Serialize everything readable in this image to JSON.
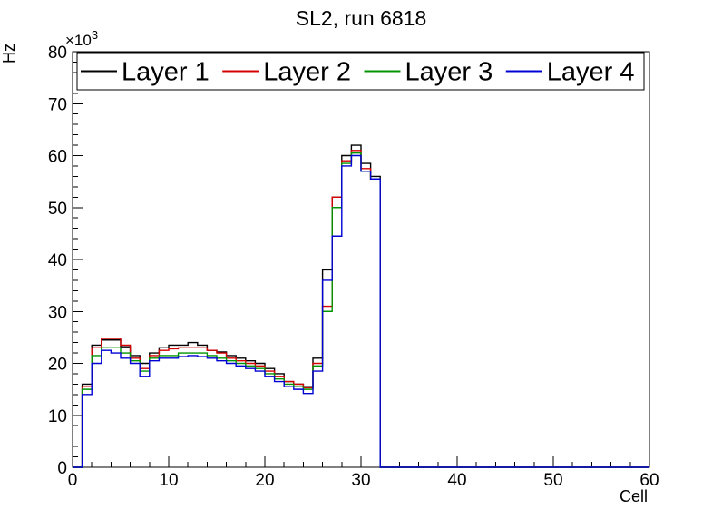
{
  "chart_data": {
    "type": "line",
    "style": "step-histogram",
    "title": "SL2, run 6818",
    "xlabel": "Cell",
    "ylabel": "Hz",
    "y_multiplier_base": "×10",
    "y_multiplier_exp": "3",
    "value_scale": 1000,
    "value_unit": "Hz",
    "xlim": [
      0,
      60
    ],
    "ylim": [
      0,
      80
    ],
    "xticks": [
      0,
      10,
      20,
      30,
      40,
      50,
      60
    ],
    "yticks": [
      0,
      10,
      20,
      30,
      40,
      50,
      60,
      70,
      80
    ],
    "x_minor_step": 2,
    "y_minor_step": 2,
    "bin_width": 1,
    "legend_position": "top",
    "grid": false,
    "series": [
      {
        "name": "Layer 1",
        "color": "#000000",
        "values": [
          0,
          16,
          23.5,
          24.5,
          24.5,
          23.2,
          21.5,
          20,
          22,
          23,
          23.5,
          23.5,
          24,
          23.5,
          22.5,
          22.2,
          21.5,
          21,
          20.5,
          20,
          19,
          18,
          16.5,
          16,
          15.5,
          21,
          38,
          52,
          60,
          62,
          58.5,
          56,
          0,
          0,
          0,
          0,
          0,
          0,
          0,
          0,
          0,
          0,
          0,
          0,
          0,
          0,
          0,
          0,
          0,
          0,
          0,
          0,
          0,
          0,
          0,
          0,
          0,
          0,
          0,
          0
        ]
      },
      {
        "name": "Layer 2",
        "color": "#d40000",
        "values": [
          0,
          15.5,
          23,
          24.8,
          24.8,
          23.5,
          21,
          19,
          21.5,
          22.5,
          22.8,
          23,
          23,
          23,
          22.5,
          22,
          21,
          20.5,
          20,
          19.5,
          18.5,
          17.5,
          16.5,
          16,
          15.3,
          20,
          31,
          52,
          59,
          61,
          57.5,
          55.5,
          0,
          0,
          0,
          0,
          0,
          0,
          0,
          0,
          0,
          0,
          0,
          0,
          0,
          0,
          0,
          0,
          0,
          0,
          0,
          0,
          0,
          0,
          0,
          0,
          0,
          0,
          0,
          0
        ]
      },
      {
        "name": "Layer 3",
        "color": "#009400",
        "values": [
          0,
          15,
          21.5,
          23,
          23,
          22,
          20.5,
          18.5,
          21,
          21.5,
          21.5,
          22,
          22,
          22,
          21.5,
          21,
          20.5,
          20,
          19.5,
          19,
          18,
          17,
          16,
          15.5,
          15,
          19.5,
          30,
          50,
          58.5,
          60.5,
          57,
          55.5,
          0,
          0,
          0,
          0,
          0,
          0,
          0,
          0,
          0,
          0,
          0,
          0,
          0,
          0,
          0,
          0,
          0,
          0,
          0,
          0,
          0,
          0,
          0,
          0,
          0,
          0,
          0,
          0
        ]
      },
      {
        "name": "Layer 4",
        "color": "#0000d4",
        "values": [
          0,
          14,
          20,
          22.5,
          22,
          21,
          20,
          17.5,
          20.5,
          21,
          21,
          21.3,
          21.5,
          21.3,
          21,
          20.5,
          20,
          19.5,
          19,
          18.5,
          17.5,
          16.5,
          15.5,
          15,
          14.2,
          18.5,
          36,
          44.5,
          58,
          60,
          57,
          55.5,
          0,
          0,
          0,
          0,
          0,
          0,
          0,
          0,
          0,
          0,
          0,
          0,
          0,
          0,
          0,
          0,
          0,
          0,
          0,
          0,
          0,
          0,
          0,
          0,
          0,
          0,
          0,
          0
        ]
      }
    ]
  }
}
